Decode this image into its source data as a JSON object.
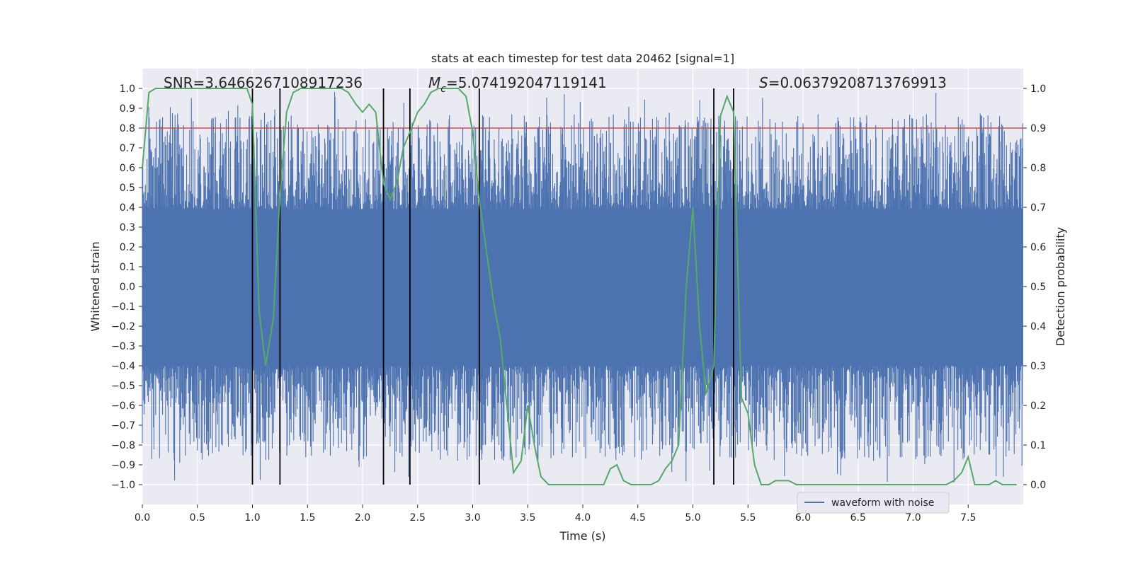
{
  "chart_data": {
    "type": "line",
    "title": "stats at each timestep for test data 20462 [signal=1]",
    "xlabel": "Time (s)",
    "ylabel_left": "Whitened strain",
    "ylabel_right": "Detection probability",
    "xlim": [
      0.0,
      8.0
    ],
    "ylim_left": [
      -1.1,
      1.1
    ],
    "ylim_right": [
      -0.05,
      1.05
    ],
    "x_ticks": [
      "0.0",
      "0.5",
      "1.0",
      "1.5",
      "2.0",
      "2.5",
      "3.0",
      "3.5",
      "4.0",
      "4.5",
      "5.0",
      "5.5",
      "6.0",
      "6.5",
      "7.0",
      "7.5"
    ],
    "x_tick_values": [
      0.0,
      0.5,
      1.0,
      1.5,
      2.0,
      2.5,
      3.0,
      3.5,
      4.0,
      4.5,
      5.0,
      5.5,
      6.0,
      6.5,
      7.0,
      7.5
    ],
    "y_left_ticks": [
      "1.0",
      "0.9",
      "0.8",
      "0.7",
      "0.6",
      "0.5",
      "0.4",
      "0.3",
      "0.2",
      "0.1",
      "0.0",
      "−0.1",
      "−0.2",
      "−0.3",
      "−0.4",
      "−0.5",
      "−0.6",
      "−0.7",
      "−0.8",
      "−0.9",
      "−1.0"
    ],
    "y_left_tick_values": [
      1.0,
      0.9,
      0.8,
      0.7,
      0.6,
      0.5,
      0.4,
      0.3,
      0.2,
      0.1,
      0.0,
      -0.1,
      -0.2,
      -0.3,
      -0.4,
      -0.5,
      -0.6,
      -0.7,
      -0.8,
      -0.9,
      -1.0
    ],
    "y_right_ticks": [
      "1.0",
      "0.9",
      "0.8",
      "0.7",
      "0.6",
      "0.5",
      "0.4",
      "0.3",
      "0.2",
      "0.1",
      "0.0"
    ],
    "y_right_tick_values": [
      1.0,
      0.9,
      0.8,
      0.7,
      0.6,
      0.5,
      0.4,
      0.3,
      0.2,
      0.1,
      0.0
    ],
    "annotations": {
      "snr": "SNR=3.6466267108917236",
      "mc_symbol": "M",
      "mc_sub": "c",
      "mc_value": "=5.074192047119141",
      "s_symbol": "S",
      "s_value": "=0.06379208713769913"
    },
    "threshold_line": {
      "y_right": 0.9,
      "color": "#c44e52"
    },
    "event_lines_x": [
      1.0,
      1.25,
      2.19,
      2.43,
      3.06,
      5.19,
      5.37
    ],
    "noise_series": {
      "name": "waveform with noise",
      "color": "#4c72b0",
      "n_points": 2048,
      "band_top": 0.39,
      "band_bottom": -0.4,
      "peak_max": 0.99,
      "peak_min": -0.99
    },
    "detection_series": {
      "name": "Detection probability",
      "color": "#55a868",
      "x": [
        0.0,
        0.06,
        0.12,
        0.2,
        0.3,
        0.4,
        0.5,
        0.6,
        0.7,
        0.8,
        0.9,
        0.95,
        1.0,
        1.06,
        1.12,
        1.19,
        1.25,
        1.31,
        1.37,
        1.44,
        1.5,
        1.56,
        1.62,
        1.69,
        1.75,
        1.81,
        1.87,
        1.94,
        2.0,
        2.06,
        2.12,
        2.19,
        2.25,
        2.31,
        2.37,
        2.43,
        2.5,
        2.56,
        2.62,
        2.69,
        2.75,
        2.81,
        2.87,
        2.94,
        3.0,
        3.06,
        3.12,
        3.19,
        3.25,
        3.31,
        3.37,
        3.44,
        3.5,
        3.56,
        3.62,
        3.69,
        3.75,
        3.81,
        3.87,
        3.94,
        4.0,
        4.06,
        4.12,
        4.19,
        4.25,
        4.31,
        4.37,
        4.44,
        4.5,
        4.56,
        4.62,
        4.69,
        4.75,
        4.81,
        4.87,
        4.94,
        5.0,
        5.06,
        5.12,
        5.19,
        5.25,
        5.31,
        5.37,
        5.44,
        5.5,
        5.56,
        5.62,
        5.69,
        5.75,
        5.81,
        5.87,
        5.94,
        6.0,
        6.1,
        6.2,
        6.3,
        6.4,
        6.5,
        6.6,
        6.7,
        6.8,
        6.9,
        7.0,
        7.1,
        7.2,
        7.3,
        7.37,
        7.44,
        7.5,
        7.56,
        7.62,
        7.69,
        7.75,
        7.81,
        7.87,
        7.94
      ],
      "y": [
        0.8,
        0.99,
        1.0,
        1.0,
        1.0,
        1.0,
        1.0,
        1.0,
        1.0,
        1.0,
        1.0,
        1.0,
        0.96,
        0.44,
        0.3,
        0.42,
        0.73,
        0.94,
        0.99,
        1.0,
        1.0,
        1.0,
        1.0,
        1.0,
        1.0,
        1.0,
        0.99,
        0.96,
        0.94,
        0.96,
        0.94,
        0.76,
        0.72,
        0.76,
        0.85,
        0.89,
        0.94,
        0.96,
        0.99,
        1.0,
        1.0,
        1.0,
        1.0,
        0.98,
        0.89,
        0.72,
        0.6,
        0.46,
        0.37,
        0.2,
        0.03,
        0.06,
        0.2,
        0.1,
        0.02,
        0.0,
        0.0,
        0.0,
        0.0,
        0.0,
        0.0,
        0.0,
        0.0,
        0.0,
        0.04,
        0.05,
        0.01,
        0.0,
        0.0,
        0.0,
        0.0,
        0.01,
        0.04,
        0.06,
        0.1,
        0.5,
        0.7,
        0.4,
        0.23,
        0.3,
        0.93,
        0.98,
        0.94,
        0.22,
        0.18,
        0.05,
        0.0,
        0.0,
        0.01,
        0.01,
        0.01,
        0.0,
        0.0,
        0.0,
        0.0,
        0.0,
        0.0,
        0.0,
        0.0,
        0.0,
        0.0,
        0.0,
        0.0,
        0.0,
        0.0,
        0.0,
        0.01,
        0.03,
        0.07,
        0.0,
        0.0,
        0.0,
        0.01,
        0.0,
        0.0,
        0.0
      ]
    },
    "legend": {
      "label": "waveform with noise",
      "placement": "lower-right"
    }
  }
}
